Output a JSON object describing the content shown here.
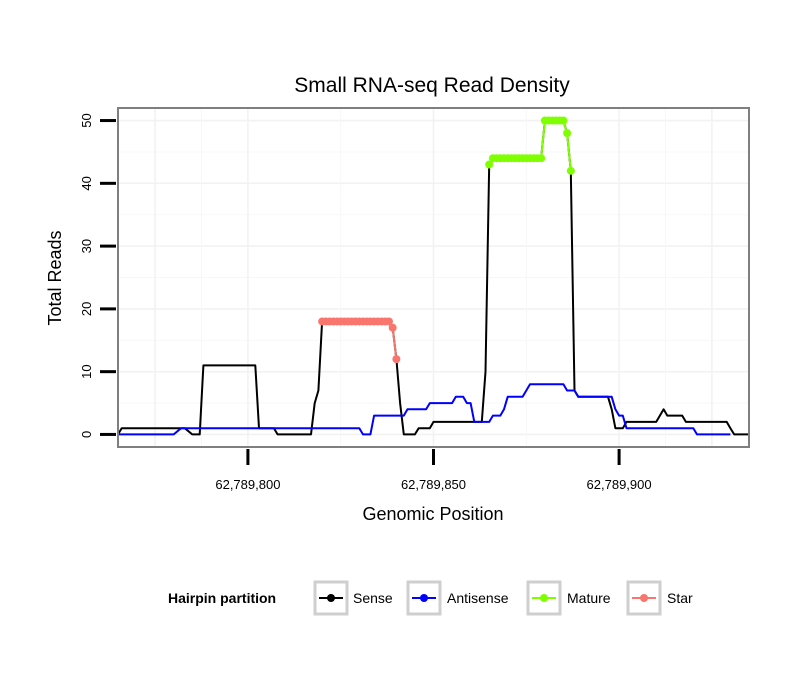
{
  "chart_data": {
    "type": "line",
    "title": "Small RNA-seq Read Density",
    "xlabel": "Genomic Position",
    "ylabel": "Total Reads",
    "xlim": [
      62789765,
      62789935
    ],
    "ylim": [
      -2,
      52
    ],
    "x_ticks": [
      62789800,
      62789850,
      62789900
    ],
    "x_tick_labels": [
      "62,789,800",
      "62,789,850",
      "62,789,900"
    ],
    "y_ticks": [
      0,
      10,
      20,
      30,
      40,
      50
    ],
    "y_tick_labels": [
      "0",
      "10",
      "20",
      "30",
      "40",
      "50"
    ],
    "grid": true,
    "legend": {
      "title": "Hairpin partition",
      "position": "bottom",
      "entries": [
        "Sense",
        "Antisense",
        "Mature",
        "Star"
      ]
    },
    "series": [
      {
        "name": "Sense",
        "color": "#000000",
        "points": [
          [
            62789765,
            0
          ],
          [
            62789766,
            1
          ],
          [
            62789783,
            1
          ],
          [
            62789785,
            0
          ],
          [
            62789787,
            0
          ],
          [
            62789788,
            11
          ],
          [
            62789802,
            11
          ],
          [
            62789803,
            1
          ],
          [
            62789807,
            1
          ],
          [
            62789808,
            0
          ],
          [
            62789817,
            0
          ],
          [
            62789818,
            5
          ],
          [
            62789819,
            7
          ],
          [
            62789820,
            18
          ],
          [
            62789838,
            18
          ],
          [
            62789839,
            17
          ],
          [
            62789840,
            12
          ],
          [
            62789841,
            5
          ],
          [
            62789842,
            0
          ],
          [
            62789845,
            0
          ],
          [
            62789846,
            1
          ],
          [
            62789849,
            1
          ],
          [
            62789850,
            2
          ],
          [
            62789863,
            2
          ],
          [
            62789864,
            10
          ],
          [
            62789865,
            43
          ],
          [
            62789866,
            44
          ],
          [
            62789879,
            44
          ],
          [
            62789880,
            50
          ],
          [
            62789885,
            50
          ],
          [
            62789886,
            48
          ],
          [
            62789887,
            42
          ],
          [
            62789888,
            7
          ],
          [
            62789889,
            6
          ],
          [
            62789897,
            6
          ],
          [
            62789898,
            4
          ],
          [
            62789899,
            1
          ],
          [
            62789901,
            1
          ],
          [
            62789902,
            2
          ],
          [
            62789910,
            2
          ],
          [
            62789911,
            3
          ],
          [
            62789912,
            4
          ],
          [
            62789913,
            3
          ],
          [
            62789917,
            3
          ],
          [
            62789918,
            2
          ],
          [
            62789929,
            2
          ],
          [
            62789930,
            1
          ],
          [
            62789931,
            0
          ],
          [
            62789935,
            0
          ]
        ]
      },
      {
        "name": "Antisense",
        "color": "#0000ff",
        "points": [
          [
            62789765,
            0
          ],
          [
            62789780,
            0
          ],
          [
            62789782,
            1
          ],
          [
            62789830,
            1
          ],
          [
            62789831,
            0
          ],
          [
            62789833,
            0
          ],
          [
            62789834,
            3
          ],
          [
            62789842,
            3
          ],
          [
            62789843,
            4
          ],
          [
            62789848,
            4
          ],
          [
            62789849,
            5
          ],
          [
            62789855,
            5
          ],
          [
            62789856,
            6
          ],
          [
            62789858,
            6
          ],
          [
            62789859,
            5
          ],
          [
            62789860,
            5
          ],
          [
            62789861,
            2
          ],
          [
            62789865,
            2
          ],
          [
            62789866,
            3
          ],
          [
            62789868,
            3
          ],
          [
            62789869,
            4
          ],
          [
            62789870,
            6
          ],
          [
            62789874,
            6
          ],
          [
            62789875,
            7
          ],
          [
            62789876,
            8
          ],
          [
            62789885,
            8
          ],
          [
            62789886,
            7
          ],
          [
            62789888,
            7
          ],
          [
            62789889,
            6
          ],
          [
            62789898,
            6
          ],
          [
            62789899,
            4
          ],
          [
            62789900,
            3
          ],
          [
            62789901,
            3
          ],
          [
            62789902,
            1
          ],
          [
            62789915,
            1
          ],
          [
            62789920,
            1
          ],
          [
            62789921,
            0
          ],
          [
            62789930,
            0
          ]
        ]
      },
      {
        "name": "Mature",
        "color": "#7fff00",
        "points": [
          [
            62789865,
            43
          ],
          [
            62789866,
            44
          ],
          [
            62789867,
            44
          ],
          [
            62789868,
            44
          ],
          [
            62789869,
            44
          ],
          [
            62789870,
            44
          ],
          [
            62789871,
            44
          ],
          [
            62789872,
            44
          ],
          [
            62789873,
            44
          ],
          [
            62789874,
            44
          ],
          [
            62789875,
            44
          ],
          [
            62789876,
            44
          ],
          [
            62789877,
            44
          ],
          [
            62789878,
            44
          ],
          [
            62789879,
            44
          ],
          [
            62789880,
            50
          ],
          [
            62789881,
            50
          ],
          [
            62789882,
            50
          ],
          [
            62789883,
            50
          ],
          [
            62789884,
            50
          ],
          [
            62789885,
            50
          ],
          [
            62789886,
            48
          ],
          [
            62789887,
            42
          ]
        ]
      },
      {
        "name": "Star",
        "color": "#f8766d",
        "points": [
          [
            62789820,
            18
          ],
          [
            62789821,
            18
          ],
          [
            62789822,
            18
          ],
          [
            62789823,
            18
          ],
          [
            62789824,
            18
          ],
          [
            62789825,
            18
          ],
          [
            62789826,
            18
          ],
          [
            62789827,
            18
          ],
          [
            62789828,
            18
          ],
          [
            62789829,
            18
          ],
          [
            62789830,
            18
          ],
          [
            62789831,
            18
          ],
          [
            62789832,
            18
          ],
          [
            62789833,
            18
          ],
          [
            62789834,
            18
          ],
          [
            62789835,
            18
          ],
          [
            62789836,
            18
          ],
          [
            62789837,
            18
          ],
          [
            62789838,
            18
          ],
          [
            62789839,
            17
          ],
          [
            62789840,
            12
          ]
        ]
      }
    ]
  }
}
